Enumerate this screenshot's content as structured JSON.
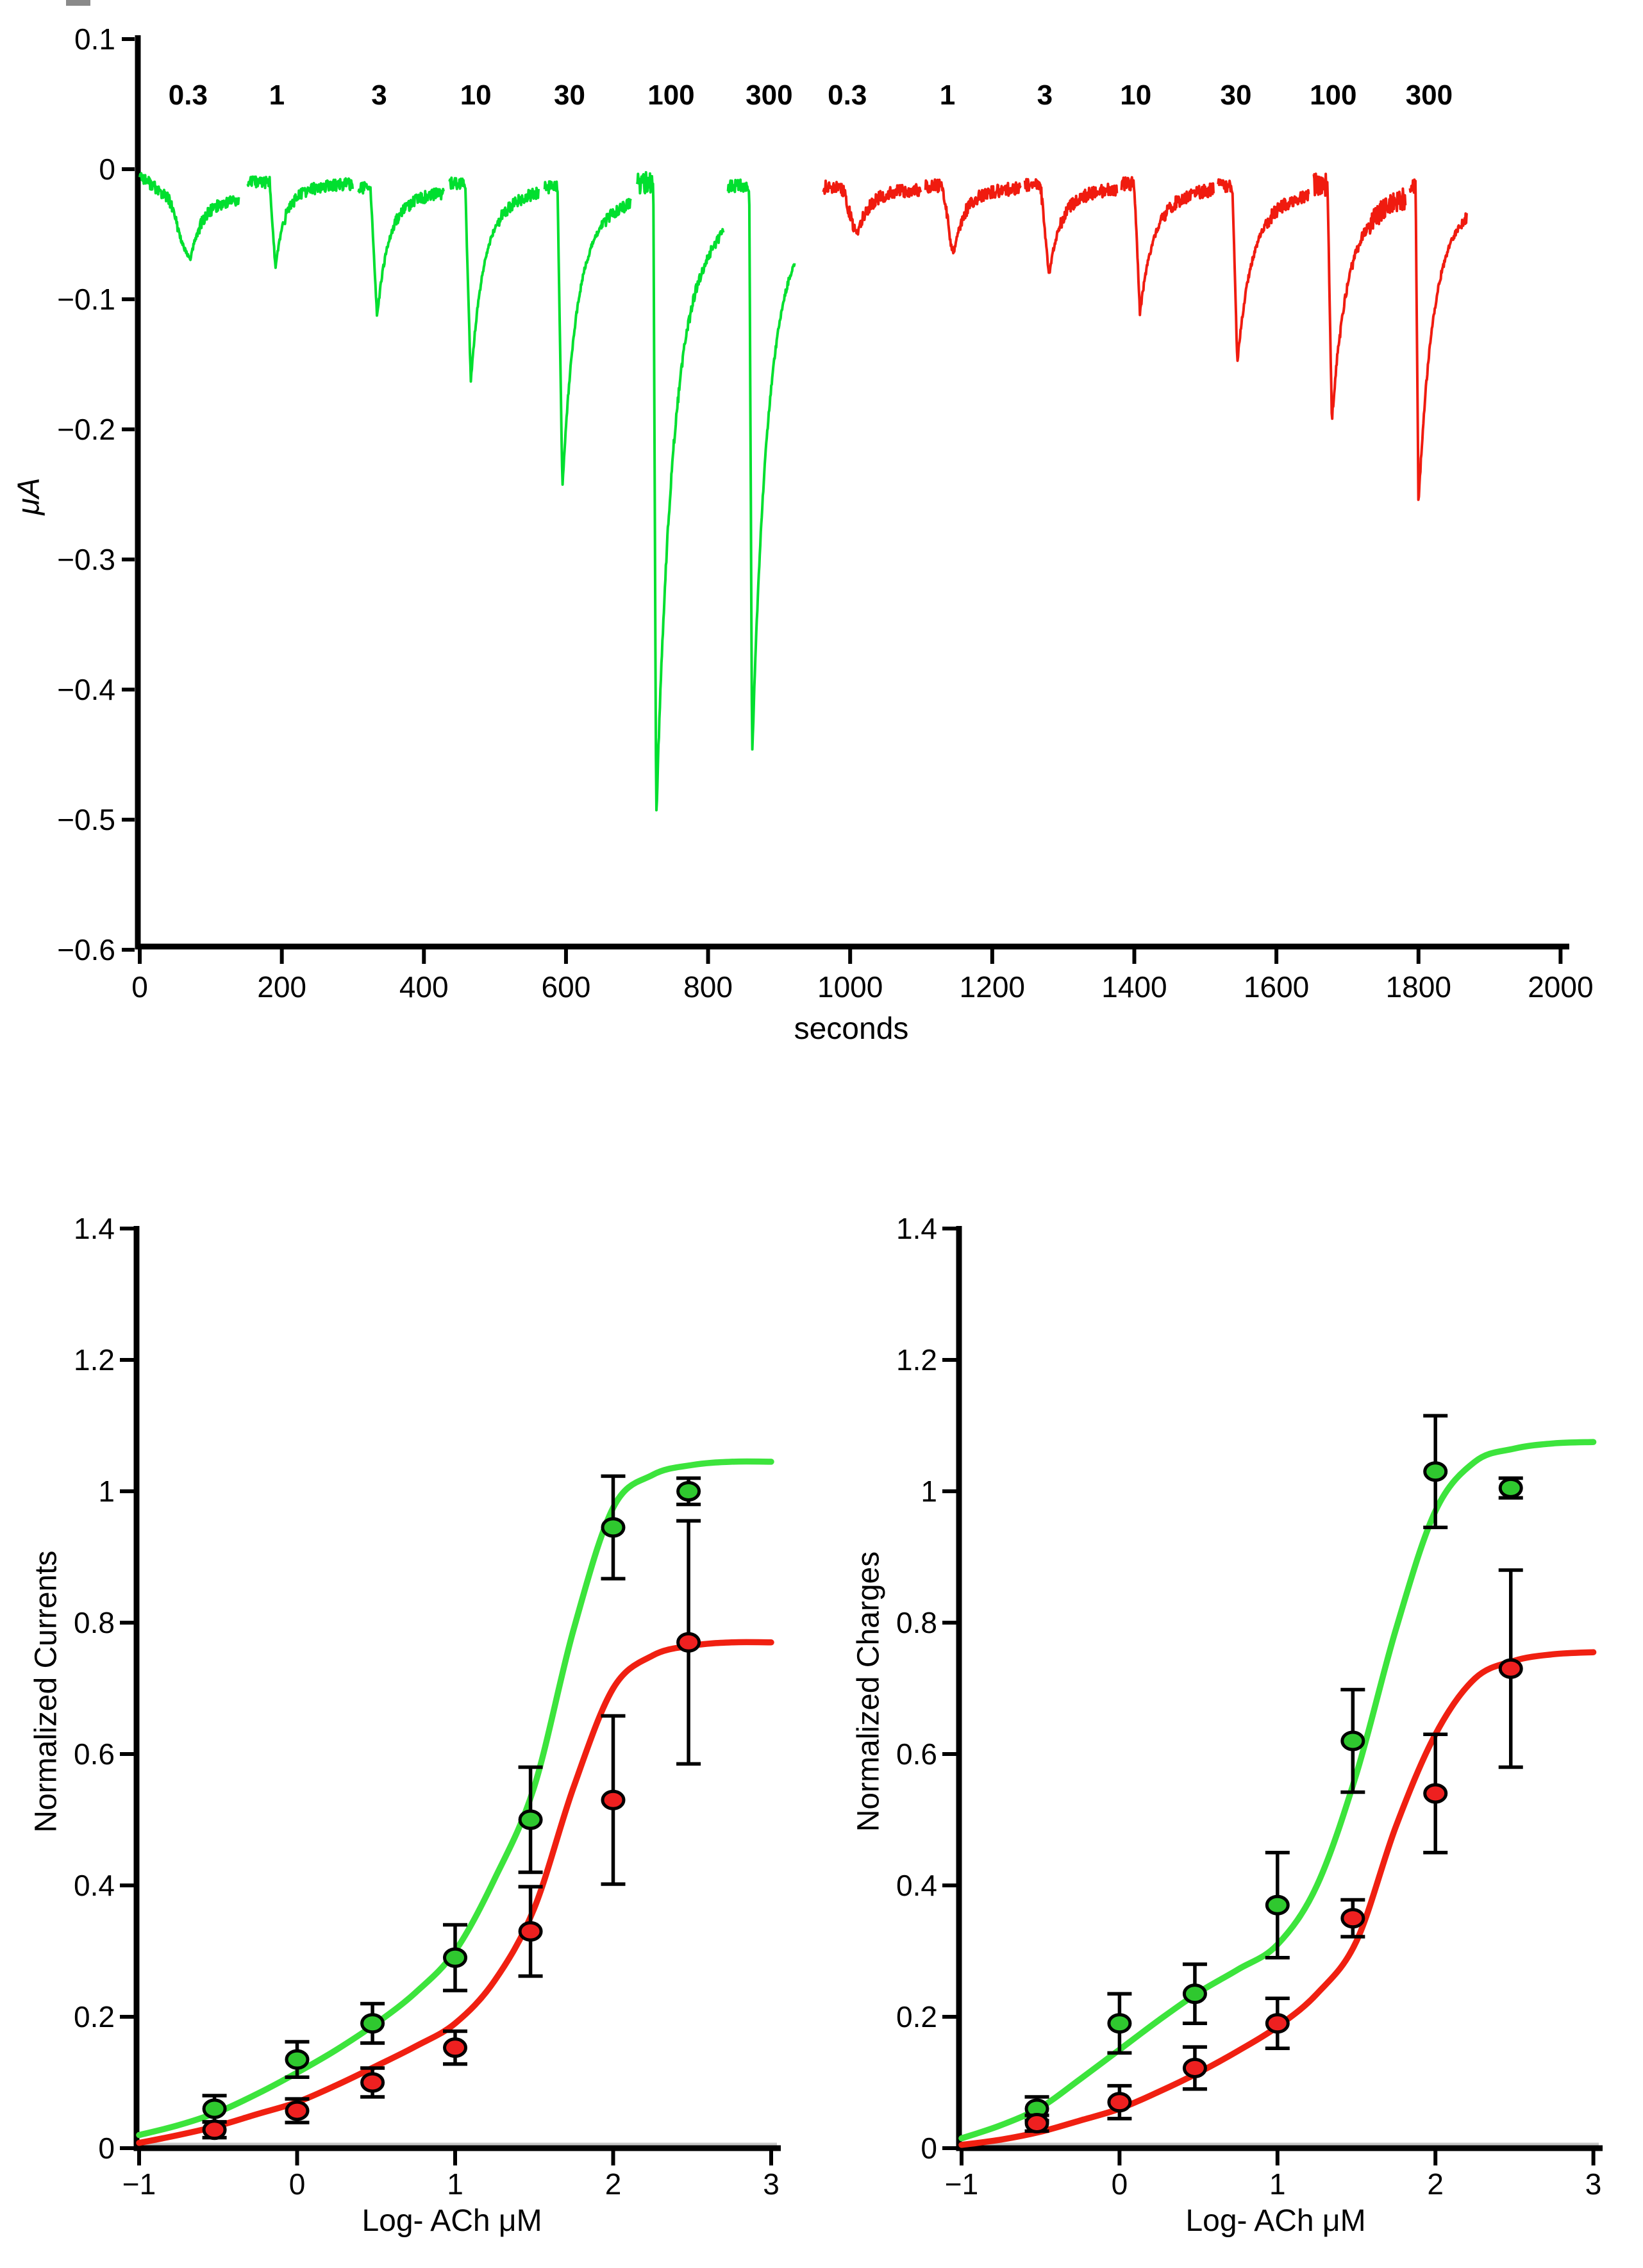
{
  "figure": {
    "background": "#ffffff",
    "accent_green": "#00DF2F",
    "accent_red": "#F01B0F"
  },
  "chart_data": [
    {
      "id": "trace-recording",
      "type": "line",
      "title": "",
      "ylabel": "μA",
      "xlabel": "seconds",
      "xlim": [
        0,
        2000
      ],
      "ylim": [
        -0.6,
        0.1
      ],
      "grid": false,
      "xticks": [
        "0",
        "200",
        "400",
        "600",
        "800",
        "1000",
        "1200",
        "1400",
        "1600",
        "1800",
        "2000"
      ],
      "yticks": [
        "0.1",
        "0",
        "−0.1",
        "−0.2",
        "−0.3",
        "−0.4",
        "−0.5",
        "−0.6"
      ],
      "ytick_values": [
        0.1,
        0,
        -0.1,
        -0.2,
        -0.3,
        -0.4,
        -0.5,
        -0.6
      ],
      "xtick_values": [
        0,
        200,
        400,
        600,
        800,
        1000,
        1200,
        1400,
        1600,
        1800,
        2000
      ],
      "series": [
        {
          "name": "green-trace",
          "color": "#00DF2F",
          "baseline": -0.012,
          "concentration_labels": [
            {
              "text": "0.3",
              "t": 68
            },
            {
              "text": "1",
              "t": 193
            },
            {
              "text": "3",
              "t": 337
            },
            {
              "text": "10",
              "t": 473
            },
            {
              "text": "30",
              "t": 605
            },
            {
              "text": "100",
              "t": 748
            },
            {
              "text": "300",
              "t": 886
            }
          ],
          "pulses": [
            {
              "seg": [
                0,
                140
              ],
              "onset": 34,
              "peak": -0.048,
              "rise": 38,
              "rec": 46,
              "noise": 0.0045,
              "drift": true
            },
            {
              "seg": [
                152,
                300
              ],
              "onset": 183,
              "peak": -0.066,
              "rise": 8,
              "rec": 38,
              "noise": 0.0045
            },
            {
              "seg": [
                308,
                428
              ],
              "onset": 325,
              "peak": -0.1,
              "rise": 9,
              "rec": 46,
              "noise": 0.0045
            },
            {
              "seg": [
                436,
                562
              ],
              "onset": 458,
              "peak": -0.153,
              "rise": 8,
              "rec": 52,
              "noise": 0.0045
            },
            {
              "seg": [
                570,
                692
              ],
              "onset": 588,
              "peak": -0.232,
              "rise": 7,
              "rec": 56,
              "noise": 0.0045
            },
            {
              "seg": [
                700,
                822
              ],
              "onset": 723,
              "peak": -0.49,
              "rise": 4,
              "rec": 68,
              "noise": 0.009
            },
            {
              "seg": [
                828,
                922
              ],
              "onset": 858,
              "peak": -0.44,
              "rise": 4,
              "rec": 62,
              "noise": 0.005
            }
          ]
        },
        {
          "name": "red-trace",
          "color": "#F01B0F",
          "baseline": -0.013,
          "concentration_labels": [
            {
              "text": "0.3",
              "t": 996
            },
            {
              "text": "1",
              "t": 1137
            },
            {
              "text": "3",
              "t": 1274
            },
            {
              "text": "10",
              "t": 1402
            },
            {
              "text": "30",
              "t": 1543
            },
            {
              "text": "100",
              "t": 1680
            },
            {
              "text": "300",
              "t": 1815
            }
          ],
          "pulses": [
            {
              "seg": [
                962,
                1100
              ],
              "onset": 985,
              "peak": -0.034,
              "rise": 26,
              "rec": 48,
              "noise": 0.005
            },
            {
              "seg": [
                1106,
                1240
              ],
              "onset": 1128,
              "peak": -0.051,
              "rise": 18,
              "rec": 42,
              "noise": 0.005
            },
            {
              "seg": [
                1246,
                1376
              ],
              "onset": 1268,
              "peak": -0.069,
              "rise": 12,
              "rec": 48,
              "noise": 0.005
            },
            {
              "seg": [
                1382,
                1512
              ],
              "onset": 1400,
              "peak": -0.1,
              "rise": 8,
              "rec": 56,
              "noise": 0.005
            },
            {
              "seg": [
                1518,
                1646
              ],
              "onset": 1538,
              "peak": -0.136,
              "rise": 7,
              "rec": 60,
              "noise": 0.005
            },
            {
              "seg": [
                1652,
                1782
              ],
              "onset": 1672,
              "peak": -0.182,
              "rise": 6,
              "rec": 64,
              "noise": 0.0085
            },
            {
              "seg": [
                1788,
                1868
              ],
              "onset": 1796,
              "peak": -0.246,
              "rise": 4,
              "rec": 58,
              "noise": 0.005
            }
          ]
        }
      ]
    },
    {
      "id": "normalized-currents",
      "type": "scatter",
      "ylabel": "Normalized Currents",
      "xlabel": "Log-  ACh μM",
      "xlim": [
        -1,
        3
      ],
      "ylim": [
        0,
        1.4
      ],
      "grid": false,
      "xticks": [
        "−1",
        "0",
        "1",
        "2",
        "3"
      ],
      "yticks": [
        "0",
        "0.2",
        "0.4",
        "0.6",
        "0.8",
        "1",
        "1.2",
        "1.4"
      ],
      "xtick_values": [
        -1,
        0,
        1,
        2,
        3
      ],
      "ytick_values": [
        0,
        0.2,
        0.4,
        0.6,
        0.8,
        1,
        1.2,
        1.4
      ],
      "x_log": [
        -0.523,
        0,
        0.477,
        1,
        1.477,
        2,
        2.477
      ],
      "series": [
        {
          "name": "green-currents",
          "marker_color": "#2FC living82F",
          "means": [
            0.06,
            0.135,
            0.19,
            0.29,
            0.5,
            0.945,
            1.0
          ],
          "errors": [
            0.02,
            0.027,
            0.03,
            0.05,
            0.08,
            0.078,
            0.02
          ],
          "curve_color": "#3CE43C",
          "curve": {
            "x": [
              -1,
              -0.75,
              -0.5,
              -0.25,
              0,
              0.25,
              0.5,
              0.75,
              1,
              1.25,
              1.5,
              1.75,
              2,
              2.25,
              2.5,
              2.75,
              3
            ],
            "y": [
              0.02,
              0.035,
              0.055,
              0.083,
              0.115,
              0.15,
              0.19,
              0.237,
              0.3,
              0.41,
              0.55,
              0.79,
              0.975,
              1.025,
              1.04,
              1.045,
              1.045
            ]
          }
        },
        {
          "name": "red-currents",
          "marker_color": "#EE2020",
          "means": [
            0.028,
            0.057,
            0.1,
            0.153,
            0.33,
            0.53,
            0.77
          ],
          "errors": [
            0.012,
            0.018,
            0.022,
            0.025,
            0.068,
            0.128,
            0.185
          ],
          "curve_color": "#F02011",
          "curve": {
            "x": [
              -1,
              -0.75,
              -0.5,
              -0.25,
              0,
              0.25,
              0.5,
              0.75,
              1,
              1.25,
              1.5,
              1.75,
              2,
              2.25,
              2.5,
              2.75,
              3
            ],
            "y": [
              0.008,
              0.02,
              0.034,
              0.052,
              0.07,
              0.096,
              0.125,
              0.155,
              0.19,
              0.255,
              0.365,
              0.55,
              0.7,
              0.75,
              0.765,
              0.77,
              0.77
            ]
          }
        }
      ]
    },
    {
      "id": "normalized-charges",
      "type": "scatter",
      "ylabel": "Normalized Charges",
      "xlabel": "Log-  ACh μM",
      "xlim": [
        -1,
        3
      ],
      "ylim": [
        0,
        1.4
      ],
      "grid": false,
      "xticks": [
        "−1",
        "0",
        "1",
        "2",
        "3"
      ],
      "yticks": [
        "0",
        "0.2",
        "0.4",
        "0.6",
        "0.8",
        "1",
        "1.2",
        "1.4"
      ],
      "xtick_values": [
        -1,
        0,
        1,
        2,
        3
      ],
      "ytick_values": [
        0,
        0.2,
        0.4,
        0.6,
        0.8,
        1,
        1.2,
        1.4
      ],
      "x_log": [
        -0.523,
        0,
        0.477,
        1,
        1.477,
        2,
        2.477
      ],
      "series": [
        {
          "name": "green-charges",
          "marker_color": "#2FC82F",
          "means": [
            0.06,
            0.19,
            0.235,
            0.37,
            0.62,
            1.03,
            1.005
          ],
          "errors": [
            0.018,
            0.045,
            0.045,
            0.08,
            0.078,
            0.085,
            0.015
          ],
          "curve_color": "#3CE43C",
          "curve": {
            "x": [
              -1,
              -0.75,
              -0.5,
              -0.25,
              0,
              0.25,
              0.5,
              0.75,
              1,
              1.25,
              1.5,
              1.75,
              2,
              2.25,
              2.5,
              2.75,
              3
            ],
            "y": [
              0.015,
              0.035,
              0.062,
              0.105,
              0.15,
              0.195,
              0.237,
              0.272,
              0.31,
              0.4,
              0.57,
              0.79,
              0.97,
              1.045,
              1.065,
              1.073,
              1.075
            ]
          }
        },
        {
          "name": "red-charges",
          "marker_color": "#EE2020",
          "means": [
            0.038,
            0.07,
            0.122,
            0.19,
            0.35,
            0.54,
            0.73
          ],
          "errors": [
            0.012,
            0.025,
            0.032,
            0.038,
            0.028,
            0.09,
            0.15
          ],
          "curve_color": "#F02011",
          "curve": {
            "x": [
              -1,
              -0.75,
              -0.5,
              -0.25,
              0,
              0.25,
              0.5,
              0.75,
              1,
              1.25,
              1.5,
              1.75,
              2,
              2.25,
              2.5,
              2.75,
              3
            ],
            "y": [
              0.005,
              0.013,
              0.025,
              0.042,
              0.06,
              0.086,
              0.115,
              0.148,
              0.185,
              0.235,
              0.315,
              0.49,
              0.63,
              0.715,
              0.742,
              0.752,
              0.755
            ]
          }
        }
      ]
    }
  ]
}
